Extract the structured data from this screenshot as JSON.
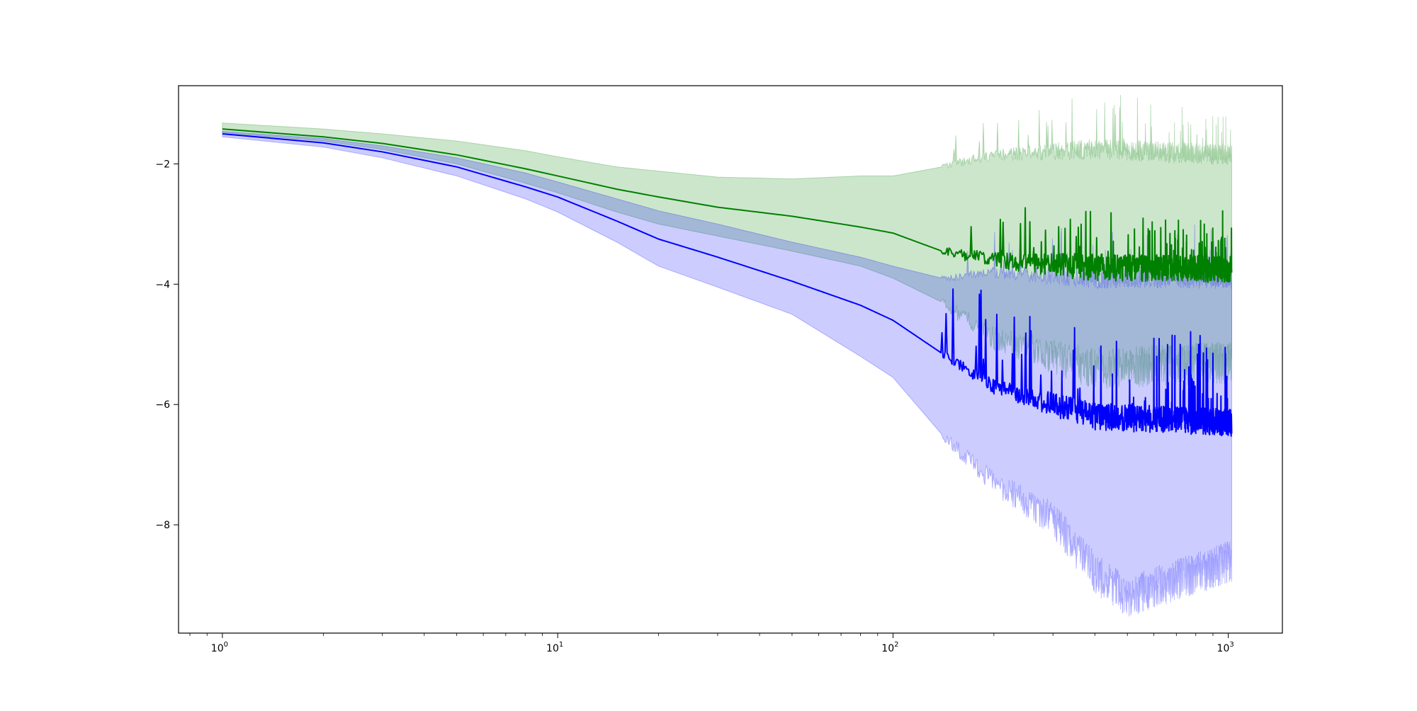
{
  "chart_data": {
    "type": "line",
    "title": "",
    "xlabel": "",
    "ylabel": "",
    "xscale": "log",
    "xlim": [
      0.74,
      1450
    ],
    "ylim": [
      -9.8,
      -0.7
    ],
    "grid": false,
    "x_ticks": [
      {
        "value": 1,
        "base": "10",
        "exp": "0"
      },
      {
        "value": 10,
        "base": "10",
        "exp": "1"
      },
      {
        "value": 100,
        "base": "10",
        "exp": "2"
      },
      {
        "value": 1000,
        "base": "10",
        "exp": "3"
      }
    ],
    "y_ticks": [
      {
        "value": -2,
        "label": "−2"
      },
      {
        "value": -4,
        "label": "−4"
      },
      {
        "value": -6,
        "label": "−6"
      },
      {
        "value": -8,
        "label": "−8"
      }
    ],
    "series": [
      {
        "color": "#008000",
        "band_color": "#008000",
        "band_opacity": 0.2,
        "noise_start_x": 140,
        "mean": [
          [
            1,
            -1.42
          ],
          [
            2,
            -1.55
          ],
          [
            3,
            -1.66
          ],
          [
            5,
            -1.85
          ],
          [
            8,
            -2.08
          ],
          [
            10,
            -2.2
          ],
          [
            15,
            -2.42
          ],
          [
            20,
            -2.55
          ],
          [
            30,
            -2.72
          ],
          [
            50,
            -2.87
          ],
          [
            80,
            -3.05
          ],
          [
            100,
            -3.15
          ],
          [
            140,
            -3.45
          ],
          [
            200,
            -3.6
          ],
          [
            400,
            -3.72
          ],
          [
            1024,
            -3.75
          ]
        ],
        "upper": [
          [
            1,
            -1.32
          ],
          [
            2,
            -1.42
          ],
          [
            3,
            -1.5
          ],
          [
            5,
            -1.62
          ],
          [
            8,
            -1.78
          ],
          [
            10,
            -1.88
          ],
          [
            15,
            -2.05
          ],
          [
            20,
            -2.12
          ],
          [
            30,
            -2.22
          ],
          [
            50,
            -2.25
          ],
          [
            80,
            -2.2
          ],
          [
            100,
            -2.2
          ],
          [
            140,
            -2.05
          ],
          [
            200,
            -1.85
          ],
          [
            400,
            -1.75
          ],
          [
            1024,
            -1.85
          ]
        ],
        "lower": [
          [
            1,
            -1.48
          ],
          [
            2,
            -1.62
          ],
          [
            3,
            -1.76
          ],
          [
            5,
            -2.0
          ],
          [
            8,
            -2.32
          ],
          [
            10,
            -2.48
          ],
          [
            15,
            -2.8
          ],
          [
            20,
            -3.0
          ],
          [
            30,
            -3.2
          ],
          [
            50,
            -3.45
          ],
          [
            80,
            -3.7
          ],
          [
            100,
            -3.9
          ],
          [
            140,
            -4.3
          ],
          [
            200,
            -4.9
          ],
          [
            400,
            -5.4
          ],
          [
            1024,
            -5.3
          ]
        ]
      },
      {
        "color": "#0000ff",
        "band_color": "#0000ff",
        "band_opacity": 0.2,
        "noise_start_x": 140,
        "mean": [
          [
            1,
            -1.5
          ],
          [
            2,
            -1.65
          ],
          [
            3,
            -1.8
          ],
          [
            5,
            -2.05
          ],
          [
            8,
            -2.38
          ],
          [
            10,
            -2.55
          ],
          [
            15,
            -2.95
          ],
          [
            20,
            -3.25
          ],
          [
            30,
            -3.55
          ],
          [
            50,
            -3.95
          ],
          [
            80,
            -4.35
          ],
          [
            100,
            -4.6
          ],
          [
            140,
            -5.15
          ],
          [
            200,
            -5.7
          ],
          [
            300,
            -6.0
          ],
          [
            400,
            -6.2
          ],
          [
            1024,
            -6.3
          ]
        ],
        "upper": [
          [
            1,
            -1.46
          ],
          [
            2,
            -1.58
          ],
          [
            3,
            -1.7
          ],
          [
            5,
            -1.9
          ],
          [
            8,
            -2.15
          ],
          [
            10,
            -2.3
          ],
          [
            15,
            -2.58
          ],
          [
            20,
            -2.78
          ],
          [
            30,
            -3.0
          ],
          [
            50,
            -3.3
          ],
          [
            80,
            -3.55
          ],
          [
            100,
            -3.7
          ],
          [
            140,
            -3.9
          ],
          [
            200,
            -3.8
          ],
          [
            400,
            -3.9
          ],
          [
            1024,
            -3.9
          ]
        ],
        "lower": [
          [
            1,
            -1.55
          ],
          [
            2,
            -1.72
          ],
          [
            3,
            -1.9
          ],
          [
            5,
            -2.2
          ],
          [
            8,
            -2.58
          ],
          [
            10,
            -2.8
          ],
          [
            15,
            -3.3
          ],
          [
            20,
            -3.7
          ],
          [
            30,
            -4.05
          ],
          [
            50,
            -4.5
          ],
          [
            80,
            -5.2
          ],
          [
            100,
            -5.55
          ],
          [
            140,
            -6.5
          ],
          [
            200,
            -7.3
          ],
          [
            300,
            -7.9
          ],
          [
            400,
            -8.8
          ],
          [
            500,
            -9.2
          ],
          [
            1024,
            -8.6
          ]
        ]
      }
    ]
  }
}
